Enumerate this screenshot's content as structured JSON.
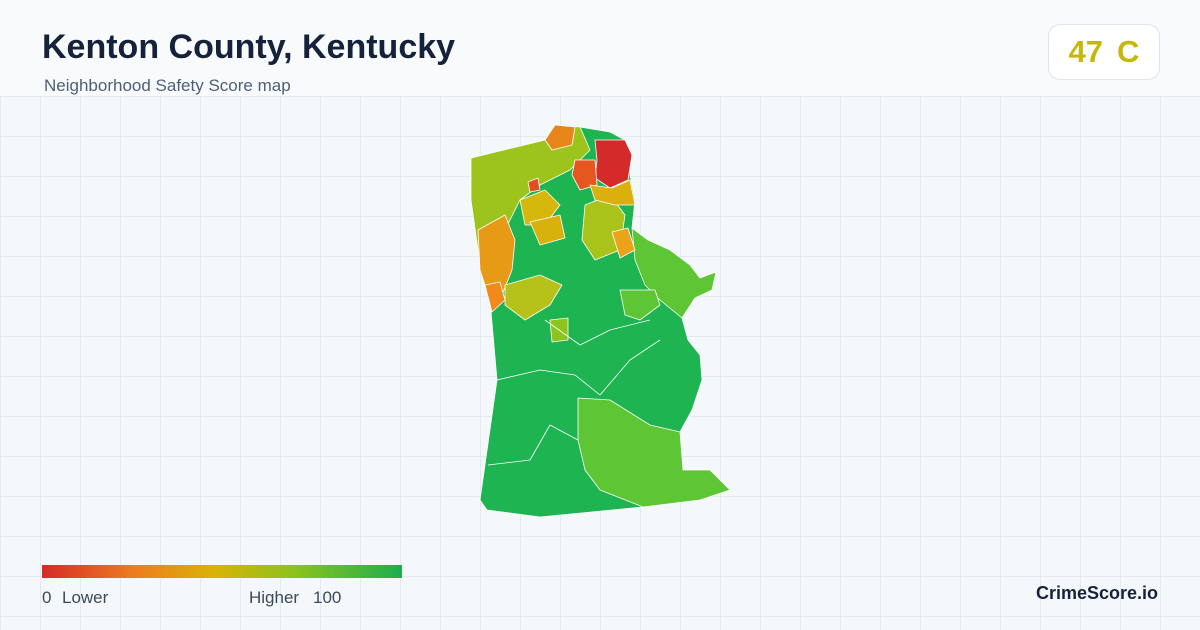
{
  "header": {
    "title": "Kenton County, Kentucky",
    "subtitle": "Neighborhood Safety Score map"
  },
  "score": {
    "value": 47,
    "grade": "C"
  },
  "legend": {
    "min": 0,
    "min_label": "Lower",
    "max_label": "Higher",
    "max": 100
  },
  "brand": "CrimeScore.io"
}
